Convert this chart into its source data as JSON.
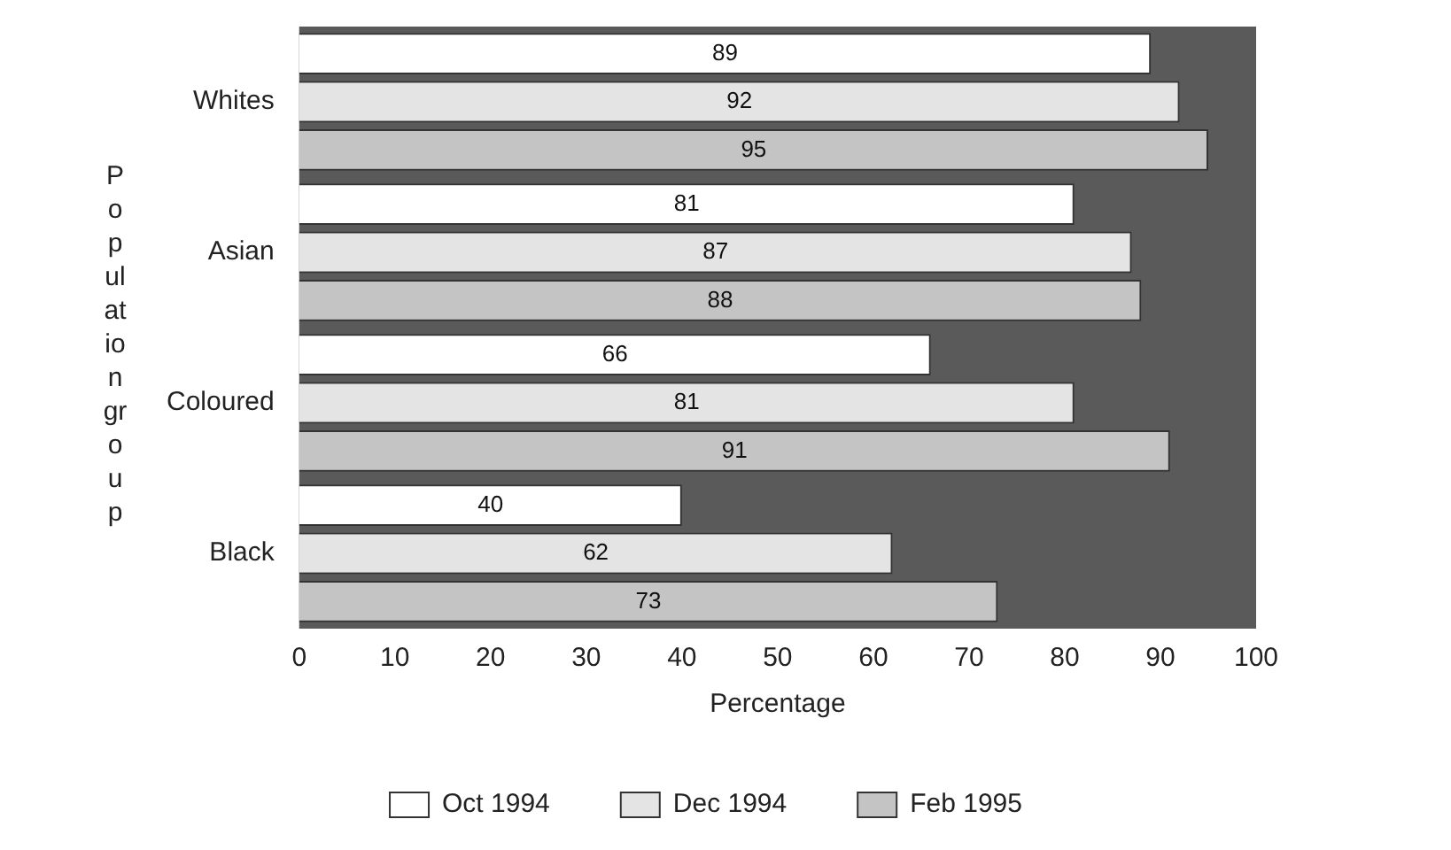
{
  "chart_data": {
    "type": "bar",
    "orientation": "horizontal",
    "xlabel": "Percentage",
    "ylabel": "Population group",
    "categories": [
      "Whites",
      "Asian",
      "Coloured",
      "Black"
    ],
    "series": [
      {
        "name": "Oct 1994",
        "color": "#ffffff",
        "values": [
          89,
          81,
          66,
          40
        ]
      },
      {
        "name": "Dec 1994",
        "color": "#e4e4e4",
        "values": [
          92,
          87,
          81,
          62
        ]
      },
      {
        "name": "Feb 1995",
        "color": "#c4c4c4",
        "values": [
          95,
          88,
          91,
          73
        ]
      }
    ],
    "xlim": [
      0,
      100
    ],
    "xticks": [
      0,
      10,
      20,
      30,
      40,
      50,
      60,
      70,
      80,
      90,
      100
    ],
    "data_labels": true,
    "legend": "bottom",
    "grid": false
  }
}
